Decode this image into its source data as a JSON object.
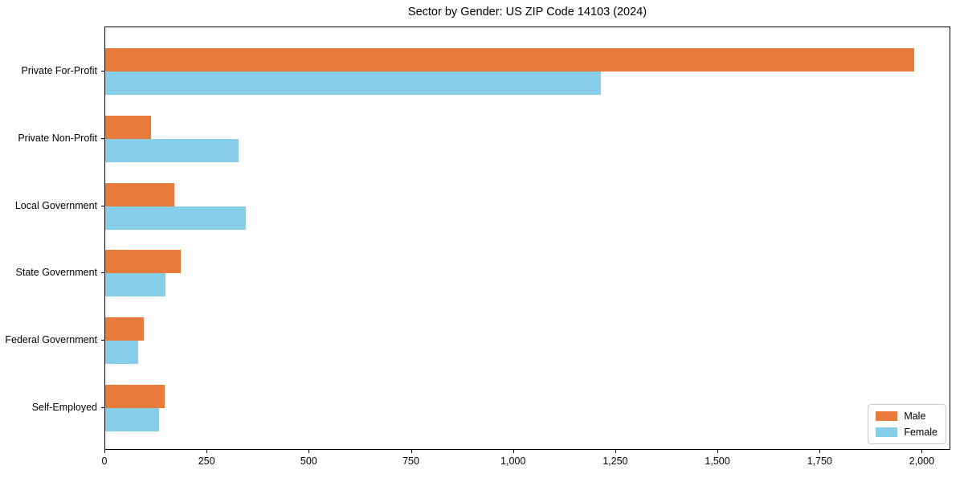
{
  "chart_data": {
    "type": "bar",
    "orientation": "horizontal",
    "title": "Sector by Gender: US ZIP Code 14103 (2024)",
    "categories": [
      "Private For-Profit",
      "Private Non-Profit",
      "Local Government",
      "State Government",
      "Federal Government",
      "Self-Employed"
    ],
    "series": [
      {
        "name": "Male",
        "color": "#e87a3c",
        "values": [
          1979,
          111,
          168,
          185,
          94,
          145
        ]
      },
      {
        "name": "Female",
        "color": "#87ceeb",
        "values": [
          1212,
          326,
          343,
          147,
          80,
          131
        ]
      }
    ],
    "xlabel": "",
    "ylabel": "",
    "xlim": [
      0,
      2070
    ],
    "xticks": [
      0,
      250,
      500,
      750,
      1000,
      1250,
      1500,
      1750,
      2000
    ],
    "xtick_labels": [
      "0",
      "250",
      "500",
      "750",
      "1,000",
      "1,250",
      "1,500",
      "1,750",
      "2,000"
    ],
    "grid": false,
    "legend": {
      "position": "lower right"
    },
    "colors": {
      "axis": "#000000",
      "legend_border": "#cccccc",
      "background": "#ffffff"
    }
  }
}
